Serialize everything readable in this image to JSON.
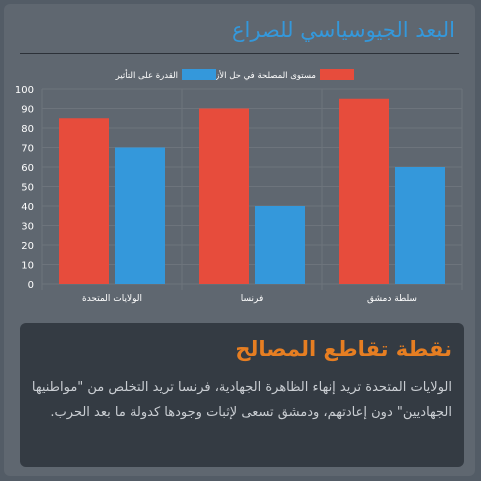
{
  "heading": "البعد الجيوسياسي للصراع",
  "card": {
    "title": "نقطة تقاطع المصالح",
    "body": "الولايات المتحدة تريد إنهاء الظاهرة الجهادية، فرنسا تريد التخلص من \"مواطنيها الجهاديين\" دون إعادتهم، ودمشق تسعى لإثبات وجودها كدولة ما بعد الحرب."
  },
  "colors": {
    "background": "#535c66",
    "panel": "#5f6770",
    "heading": "#3498db",
    "card": "#343b43",
    "card_title": "#e67e22",
    "series_interest": "#e74c3c",
    "series_capacity": "#3498db"
  },
  "chart_data": {
    "type": "bar",
    "categories": [
      "الولايات المتحدة",
      "فرنسا",
      "سلطة دمشق"
    ],
    "series": [
      {
        "name": "مستوى المصلحة في حل الأزمة",
        "values": [
          85,
          90,
          95
        ],
        "color": "#e74c3c"
      },
      {
        "name": "القدرة على التأثير",
        "values": [
          70,
          40,
          60
        ],
        "color": "#3498db"
      }
    ],
    "ylim": [
      0,
      100
    ],
    "y_ticks": [
      0,
      10,
      20,
      30,
      40,
      50,
      60,
      70,
      80,
      90,
      100
    ],
    "grid": true,
    "legend": "top-center"
  }
}
